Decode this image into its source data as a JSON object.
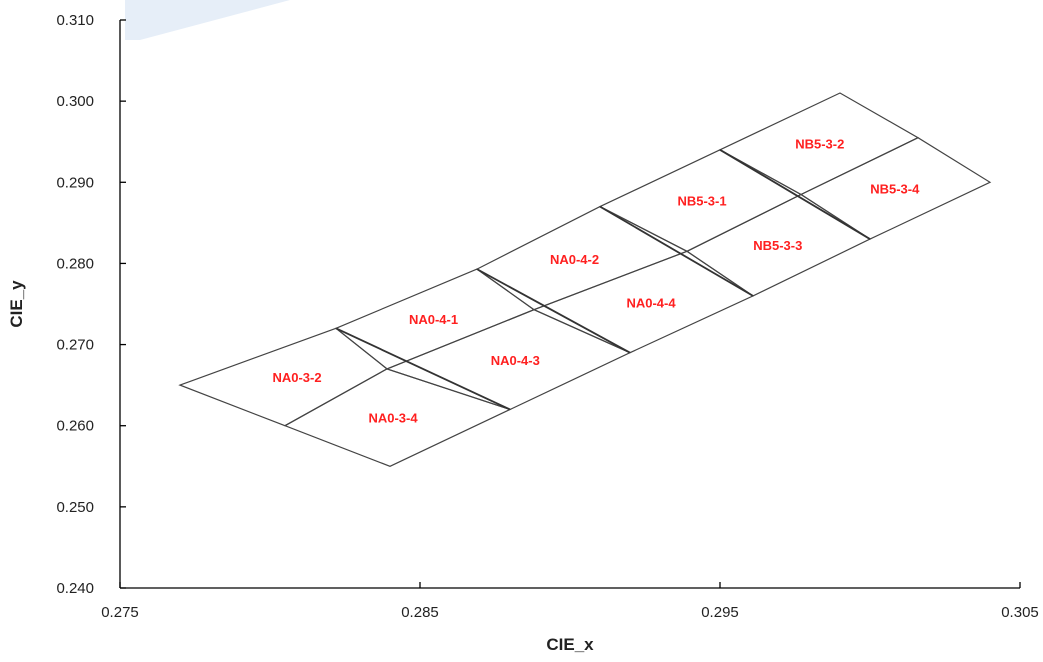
{
  "chart_data": {
    "type": "scatter",
    "title": "",
    "xlabel": "CIE_x",
    "ylabel": "CIE_y",
    "xlim": [
      0.275,
      0.305
    ],
    "ylim": [
      0.24,
      0.31
    ],
    "x_ticks": [
      "0.275",
      "0.285",
      "0.295",
      "0.305"
    ],
    "y_ticks": [
      "0.240",
      "0.250",
      "0.260",
      "0.270",
      "0.280",
      "0.290",
      "0.300",
      "0.310"
    ],
    "grid": false,
    "legend": "none",
    "bins": [
      {
        "name": "NA0-3-2",
        "corners": [
          [
            0.277,
            0.265
          ],
          [
            0.2822,
            0.272
          ],
          [
            0.2839,
            0.267
          ],
          [
            0.2805,
            0.26
          ]
        ]
      },
      {
        "name": "NA0-3-4",
        "corners": [
          [
            0.2805,
            0.26
          ],
          [
            0.2839,
            0.267
          ],
          [
            0.288,
            0.262
          ],
          [
            0.284,
            0.255
          ]
        ]
      },
      {
        "name": "NA0-4-1",
        "corners": [
          [
            0.2822,
            0.272
          ],
          [
            0.2869,
            0.2793
          ],
          [
            0.2888,
            0.2743
          ],
          [
            0.2839,
            0.267
          ]
        ]
      },
      {
        "name": "NA0-4-3",
        "corners": [
          [
            0.2839,
            0.267
          ],
          [
            0.2888,
            0.2743
          ],
          [
            0.292,
            0.269
          ],
          [
            0.288,
            0.262
          ]
        ]
      },
      {
        "name": "NA0-4-2",
        "corners": [
          [
            0.2869,
            0.2793
          ],
          [
            0.291,
            0.287
          ],
          [
            0.2939,
            0.2815
          ],
          [
            0.2888,
            0.2743
          ]
        ]
      },
      {
        "name": "NA0-4-4",
        "corners": [
          [
            0.2888,
            0.2743
          ],
          [
            0.2939,
            0.2815
          ],
          [
            0.2961,
            0.276
          ],
          [
            0.292,
            0.269
          ]
        ]
      },
      {
        "name": "NB5-3-1",
        "corners": [
          [
            0.291,
            0.287
          ],
          [
            0.295,
            0.294
          ],
          [
            0.2977,
            0.2885
          ],
          [
            0.2939,
            0.2815
          ]
        ]
      },
      {
        "name": "NB5-3-3",
        "corners": [
          [
            0.2939,
            0.2815
          ],
          [
            0.2977,
            0.2885
          ],
          [
            0.3,
            0.283
          ],
          [
            0.2961,
            0.276
          ]
        ]
      },
      {
        "name": "NB5-3-2",
        "corners": [
          [
            0.295,
            0.294
          ],
          [
            0.299,
            0.301
          ],
          [
            0.3016,
            0.2955
          ],
          [
            0.2977,
            0.2885
          ]
        ]
      },
      {
        "name": "NB5-3-4",
        "corners": [
          [
            0.2977,
            0.2885
          ],
          [
            0.3016,
            0.2955
          ],
          [
            0.304,
            0.29
          ],
          [
            0.3,
            0.283
          ]
        ]
      }
    ],
    "bold_dividers": [
      [
        [
          0.2822,
          0.272
        ],
        [
          0.288,
          0.262
        ]
      ],
      [
        [
          0.2869,
          0.2793
        ],
        [
          0.292,
          0.269
        ]
      ],
      [
        [
          0.291,
          0.287
        ],
        [
          0.2961,
          0.276
        ]
      ],
      [
        [
          0.295,
          0.294
        ],
        [
          0.3,
          0.283
        ]
      ]
    ],
    "colors": {
      "outline": "#444444",
      "divider": "#333333",
      "label": "#ff2020",
      "axis": "#000000",
      "watermark": "#e6eef8"
    }
  }
}
